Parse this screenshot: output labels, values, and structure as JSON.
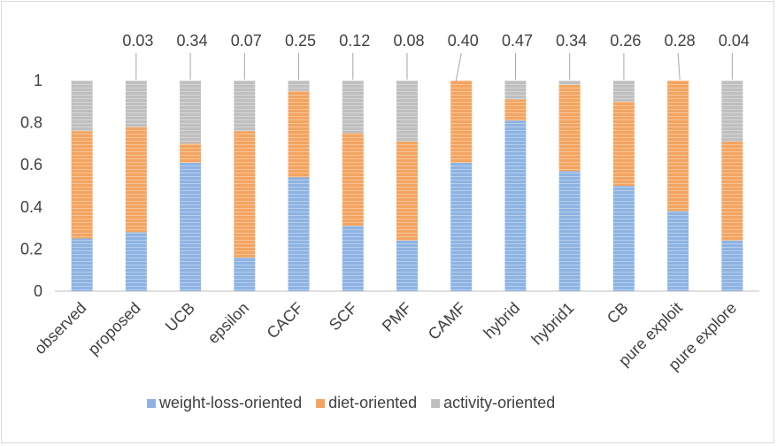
{
  "chart_data": {
    "type": "bar",
    "stacked": true,
    "normalized": true,
    "categories": [
      "observed",
      "proposed",
      "UCB",
      "epsilon",
      "CACF",
      "SCF",
      "PMF",
      "CAMF",
      "hybrid",
      "hybrid1",
      "CB",
      "pure exploit",
      "pure explore"
    ],
    "series": [
      {
        "name": "weight-loss-oriented",
        "color": "#8db3e2",
        "values": [
          0.25,
          0.28,
          0.61,
          0.16,
          0.54,
          0.31,
          0.24,
          0.61,
          0.81,
          0.57,
          0.5,
          0.38,
          0.24
        ]
      },
      {
        "name": "diet-oriented",
        "color": "#f4a460",
        "values": [
          0.51,
          0.5,
          0.09,
          0.6,
          0.41,
          0.44,
          0.47,
          0.39,
          0.1,
          0.41,
          0.4,
          0.62,
          0.47
        ]
      },
      {
        "name": "activity-oriented",
        "color": "#bfbfbf",
        "values": [
          0.24,
          0.22,
          0.3,
          0.24,
          0.05,
          0.25,
          0.29,
          0.0,
          0.09,
          0.02,
          0.1,
          0.0,
          0.29
        ]
      }
    ],
    "top_labels": [
      "",
      "0.03",
      "0.34",
      "0.07",
      "0.25",
      "0.12",
      "0.08",
      "0.40",
      "0.47",
      "0.34",
      "0.26",
      "0.28",
      "0.04"
    ],
    "ylim": [
      0,
      1
    ],
    "yticks": [
      "0",
      "0.2",
      "0.4",
      "0.6",
      "0.8",
      "1"
    ],
    "legend_position": "bottom",
    "grid": false
  }
}
